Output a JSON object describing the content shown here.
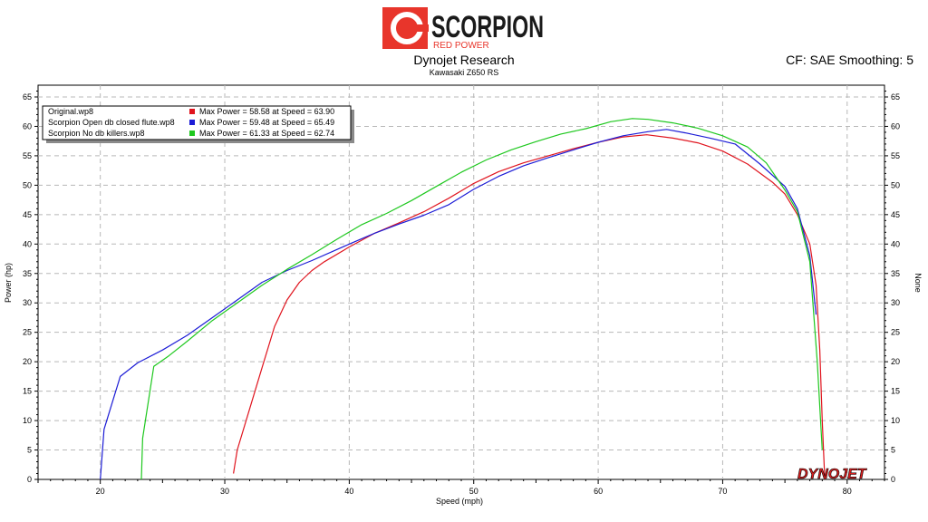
{
  "header": {
    "brand": "SCORPION",
    "brand_sub": "RED POWER",
    "title": "Dynojet Research",
    "subtitle": "Kawasaki Z650 RS",
    "cf": "CF: SAE Smoothing: 5",
    "watermark": "DYNOJET"
  },
  "colors": {
    "red": "#e0141e",
    "blue": "#1c1cd6",
    "green": "#1ec81e",
    "brand_red": "#e8352b"
  },
  "chart_data": {
    "type": "line",
    "xlabel": "Speed (mph)",
    "ylabel": "Power (hp)",
    "y2label": "None",
    "xlim": [
      15,
      83
    ],
    "ylim": [
      0,
      67
    ],
    "xticks": [
      20,
      30,
      40,
      50,
      60,
      70,
      80
    ],
    "yticks": [
      0,
      5,
      10,
      15,
      20,
      25,
      30,
      35,
      40,
      45,
      50,
      55,
      60,
      65
    ],
    "grid": true,
    "legend_position": "top-left",
    "series": [
      {
        "name": "Original.wp8",
        "legend_value": "Max Power = 58.58 at Speed = 63.90",
        "color": "#e0141e",
        "x": [
          30.7,
          31,
          32,
          33,
          34,
          35,
          36,
          37,
          38,
          40,
          42,
          44,
          46,
          48,
          50,
          52,
          54,
          56,
          58,
          60,
          62,
          63.9,
          66,
          68,
          70,
          72,
          74,
          75,
          76,
          77,
          77.5,
          77.8,
          78.0,
          78.2
        ],
        "y": [
          1,
          5,
          12,
          19,
          26,
          30.5,
          33.5,
          35.5,
          37,
          39.5,
          41.8,
          43.6,
          45.5,
          47.8,
          50.3,
          52.3,
          53.8,
          55,
          56.2,
          57.3,
          58.2,
          58.58,
          58,
          57.2,
          55.8,
          53.6,
          50.5,
          48.5,
          45,
          40,
          33,
          22,
          10,
          0
        ]
      },
      {
        "name": "Scorpion Open db closed flute.wp8",
        "legend_value": "Max Power = 59.48 at Speed = 65.49",
        "color": "#1c1cd6",
        "x": [
          20.0,
          20.3,
          21.6,
          23,
          25,
          27,
          29,
          31,
          33,
          35,
          37,
          40,
          42,
          44,
          46,
          48,
          50,
          52,
          54,
          56,
          58,
          60,
          62,
          64,
          65.49,
          67,
          69,
          71,
          73,
          75,
          76,
          77,
          77.5
        ],
        "y": [
          0,
          8.5,
          17.5,
          19.8,
          22,
          24.5,
          27.5,
          30.5,
          33.5,
          35.5,
          37.2,
          40,
          41.8,
          43.4,
          44.9,
          46.7,
          49.3,
          51.5,
          53.3,
          54.7,
          56,
          57.3,
          58.4,
          59.1,
          59.48,
          58.9,
          58,
          57,
          53.6,
          49.8,
          46,
          38,
          28
        ]
      },
      {
        "name": "Scorpion No db killers.wp8",
        "legend_value": "Max Power = 61.33 at Speed = 62.74",
        "color": "#1ec81e",
        "x": [
          23.3,
          23.4,
          24.3,
          25.5,
          27,
          29,
          31,
          33,
          35,
          37,
          39,
          41,
          43,
          45,
          47,
          49,
          51,
          53,
          55,
          57,
          59,
          61,
          62.74,
          64,
          66,
          68,
          70,
          72,
          73.5,
          75,
          76,
          77,
          77.6,
          78.0
        ],
        "y": [
          0,
          7,
          19.2,
          21,
          23.5,
          27,
          30,
          33,
          35.7,
          38.2,
          40.8,
          43.3,
          45.2,
          47.4,
          49.8,
          52.2,
          54.3,
          56,
          57.4,
          58.7,
          59.6,
          60.8,
          61.33,
          61.2,
          60.6,
          59.7,
          58.4,
          56.5,
          53.8,
          49.2,
          45.5,
          37,
          20,
          5
        ]
      }
    ]
  }
}
